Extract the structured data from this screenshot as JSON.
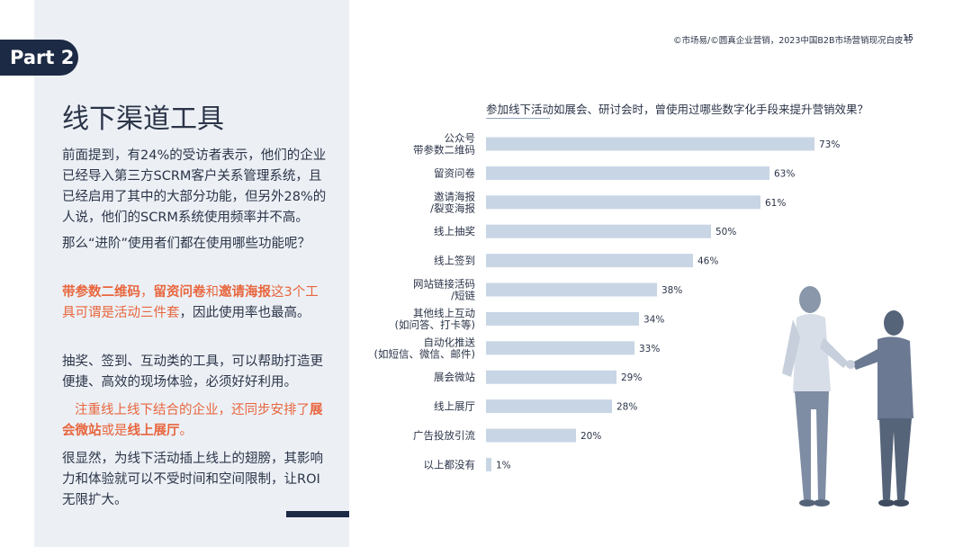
{
  "header": {
    "source": "©市场易/©圆真企业营销，2023中国B2B市场营销现况白皮书",
    "page_number": "15"
  },
  "part_tab": "Part 2",
  "title": "线下渠道工具",
  "paragraphs": {
    "p1": "前面提到，有24%的受访者表示，他们的企业已经导入第三方SCRM客户关系管理系统，且已经启用了其中的大部分功能，但另外28%的人说，他们的SCRM系统使用频率并不高。",
    "p2": "那么“进阶”使用者们都在使用哪些功能呢？",
    "p3": {
      "b1": "带参数二维码",
      "s1": "，",
      "b2": "留资问卷",
      "s2": "和",
      "b3": "邀请海报",
      "s3": "这3个工具可谓是活动三件套",
      "rest": "，因此使用率也最高。"
    },
    "p4": "抽奖、签到、互动类的工具，可以帮助打造更便捷、高效的现场体验，必须好好利用。",
    "p5": {
      "s1": "注重线上线下结合的企业，还同步安排了",
      "b1": "展会微站",
      "s2": "或是",
      "b2": "线上展厅",
      "s3": "。"
    },
    "p6": "很显然，为线下活动插上线上的翅膀，其影响力和体验就可以不受时间和空间限制，让ROI无限扩大。"
  },
  "chart_data": {
    "type": "bar",
    "orientation": "horizontal",
    "title": "参加线下活动如展会、研讨会时，曾使用过哪些数字化手段来提升营销效果？",
    "categories": [
      [
        "公众号",
        "带参数二维码"
      ],
      [
        "留资问卷"
      ],
      [
        "邀请海报",
        "/裂变海报"
      ],
      [
        "线上抽奖"
      ],
      [
        "线上签到"
      ],
      [
        "网站链接活码",
        "/短链"
      ],
      [
        "其他线上互动",
        "(如问答、打卡等)"
      ],
      [
        "自动化推送",
        "(如短信、微信、邮件)"
      ],
      [
        "展会微站"
      ],
      [
        "线上展厅"
      ],
      [
        "广告投放引流"
      ],
      [
        "以上都没有"
      ]
    ],
    "values": [
      73,
      63,
      61,
      50,
      46,
      38,
      34,
      33,
      29,
      28,
      20,
      1
    ],
    "value_labels": [
      "73%",
      "63%",
      "61%",
      "50%",
      "46%",
      "38%",
      "34%",
      "33%",
      "29%",
      "28%",
      "20%",
      "1%"
    ],
    "xlim": [
      0,
      100
    ],
    "grid": false,
    "bar_color": "#c8d5e5"
  }
}
